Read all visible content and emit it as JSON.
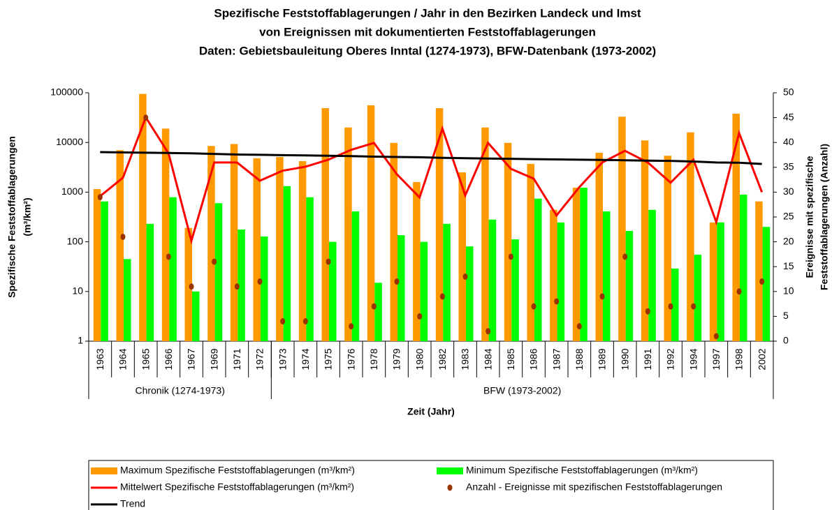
{
  "chart_data": {
    "type": "bar",
    "title": [
      "Spezifische Feststoffablagerungen / Jahr in den Bezirken Landeck und Imst",
      "von Ereignissen mit dokumentierten Feststoffablagerungen",
      "Daten: Gebietsbauleitung Oberes Inntal (1274-1973), BFW-Datenbank (1973-2002)"
    ],
    "y_label": [
      "Spezifische Feststoffablagerungen",
      "(m³/km²)"
    ],
    "y2_label": [
      "Ereignisse mit spezifische",
      "Feststoffablagerungen (Anzahl)"
    ],
    "x_label": "Zeit (Jahr)",
    "categories": [
      "1963",
      "1964",
      "1965",
      "1966",
      "1967",
      "1969",
      "1971",
      "1972",
      "1973",
      "1974",
      "1975",
      "1976",
      "1978",
      "1979",
      "1980",
      "1982",
      "1983",
      "1984",
      "1985",
      "1986",
      "1987",
      "1988",
      "1989",
      "1990",
      "1991",
      "1992",
      "1994",
      "1997",
      "1998",
      "2002"
    ],
    "groups": [
      {
        "label": "Chronik (1274-1973)",
        "count": 8
      },
      {
        "label": "BFW (1973-2002)",
        "count": 22
      }
    ],
    "ylim": [
      1,
      100000
    ],
    "yticks": [
      1,
      10,
      100,
      1000,
      10000,
      100000
    ],
    "log_scale": true,
    "y2lim": [
      0,
      50
    ],
    "y2ticks": [
      0,
      5,
      10,
      15,
      20,
      25,
      30,
      35,
      40,
      45,
      50
    ],
    "series": [
      {
        "name": "Maximum Spezifische Feststoffablagerungen (m³/km²)",
        "type": "bar",
        "color": "#FF9900",
        "values": [
          1150,
          7000,
          95000,
          19000,
          190,
          8500,
          9300,
          4800,
          5100,
          4200,
          49000,
          20000,
          56000,
          9800,
          1600,
          49000,
          2500,
          20000,
          9800,
          3700,
          440,
          1230,
          6200,
          33000,
          11000,
          5400,
          16000,
          245,
          38000,
          650
        ]
      },
      {
        "name": "Minimum Spezifische Feststoffablagerungen (m³/km²)",
        "type": "bar",
        "color": "#00FF00",
        "values": [
          650,
          45,
          230,
          790,
          10,
          600,
          177,
          128,
          1320,
          790,
          100,
          410,
          15,
          136,
          100,
          230,
          81,
          280,
          112,
          740,
          245,
          1230,
          410,
          166,
          440,
          29,
          55,
          245,
          890,
          200
        ]
      },
      {
        "name": "Mittelwert Spezifische Feststoffablagerungen (m³/km²)",
        "type": "line",
        "color": "#FF0000",
        "values": [
          830,
          1950,
          32000,
          6000,
          105,
          3950,
          3950,
          1700,
          2700,
          3250,
          4500,
          7100,
          9800,
          2300,
          780,
          19000,
          860,
          9800,
          2950,
          1870,
          340,
          1260,
          3950,
          6800,
          3950,
          1550,
          4500,
          250,
          15500,
          1000
        ]
      },
      {
        "name": "Anzahl - Ereignisse mit spezifischen Feststoffablagerungen",
        "type": "scatter",
        "color": "#993300",
        "axis": "y2",
        "values": [
          29,
          21,
          45,
          17,
          11,
          16,
          11,
          12,
          4,
          4,
          16,
          3,
          7,
          12,
          5,
          9,
          13,
          2,
          17,
          7,
          8,
          3,
          9,
          17,
          6,
          7,
          7,
          1,
          10,
          12
        ]
      },
      {
        "name": "Trend",
        "type": "line",
        "color": "#000000",
        "values": [
          6400,
          6310,
          6220,
          6140,
          6050,
          5880,
          5710,
          5640,
          5560,
          5480,
          5410,
          5320,
          5180,
          5110,
          5040,
          4900,
          4830,
          4750,
          4690,
          4620,
          4560,
          4500,
          4440,
          4380,
          4310,
          4250,
          4130,
          3960,
          3910,
          3690
        ]
      }
    ]
  }
}
